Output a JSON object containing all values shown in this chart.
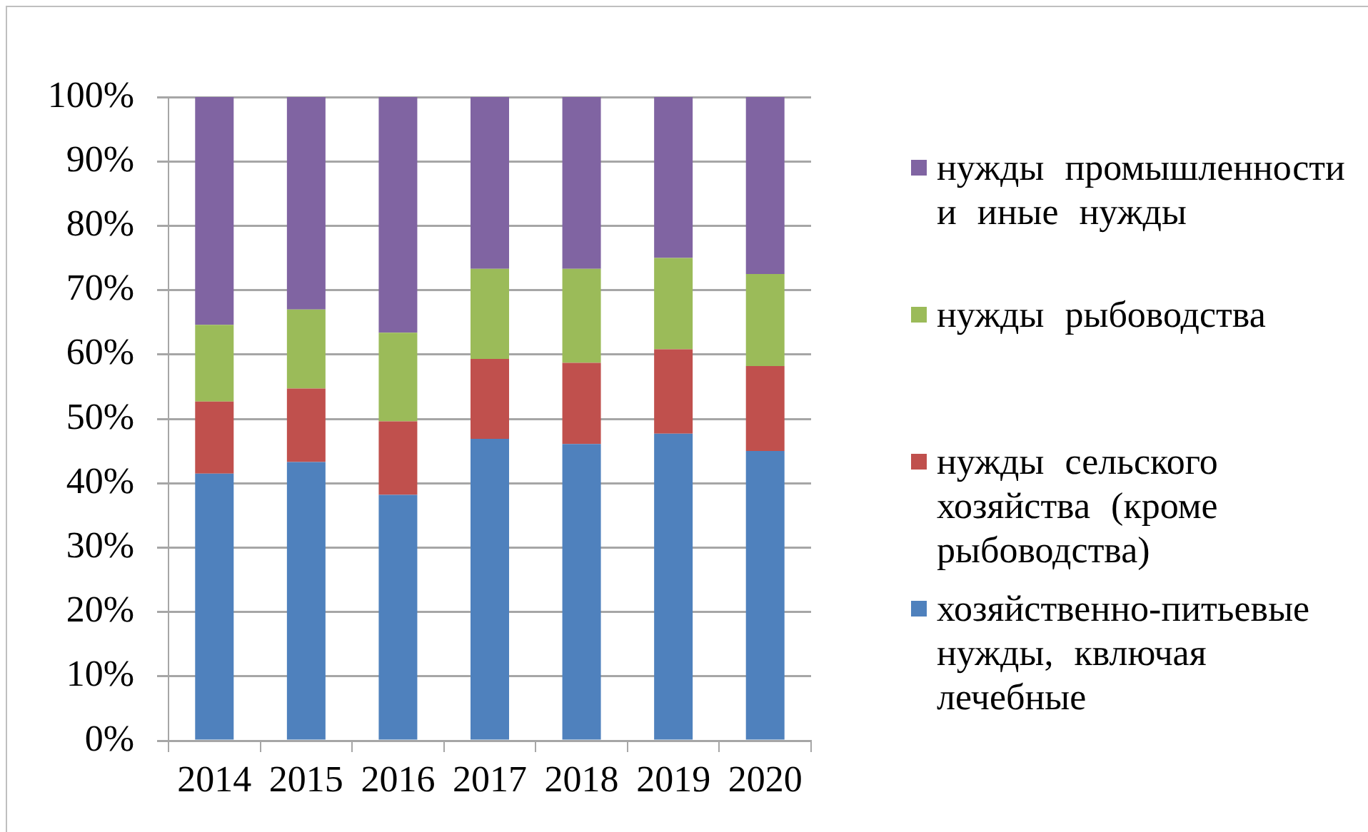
{
  "chart_data": {
    "type": "bar",
    "stacked": true,
    "categories": [
      "2014",
      "2015",
      "2016",
      "2017",
      "2018",
      "2019",
      "2020"
    ],
    "series": [
      {
        "name": "хозяйственно-питьевые нужды, квлючая лечебные",
        "color": "#4f81bd",
        "values": [
          41.5,
          43.3,
          38.2,
          46.9,
          46.1,
          47.7,
          45.0
        ]
      },
      {
        "name": "нужды сельского хозяйства (кроме рыбоводства)",
        "color": "#c0504d",
        "values": [
          11.2,
          11.4,
          11.4,
          12.4,
          12.6,
          13.1,
          13.2
        ]
      },
      {
        "name": "нужды рыбоводства",
        "color": "#9bbb59",
        "values": [
          11.9,
          12.3,
          13.8,
          14.0,
          14.6,
          14.2,
          14.3
        ]
      },
      {
        "name": "нужды промышленности и иные нужды",
        "color": "#8064a2",
        "values": [
          35.4,
          33.0,
          36.6,
          26.7,
          26.7,
          25.0,
          27.5
        ]
      }
    ],
    "ylim": [
      0,
      100
    ],
    "yticks": [
      {
        "value": 0,
        "label": "0%"
      },
      {
        "value": 10,
        "label": "10%"
      },
      {
        "value": 20,
        "label": "20%"
      },
      {
        "value": 30,
        "label": "30%"
      },
      {
        "value": 40,
        "label": "40%"
      },
      {
        "value": 50,
        "label": "50%"
      },
      {
        "value": 60,
        "label": "60%"
      },
      {
        "value": 70,
        "label": "70%"
      },
      {
        "value": 80,
        "label": "80%"
      },
      {
        "value": 90,
        "label": "90%"
      },
      {
        "value": 100,
        "label": "100%"
      }
    ],
    "grid": "y",
    "legend": "right"
  }
}
